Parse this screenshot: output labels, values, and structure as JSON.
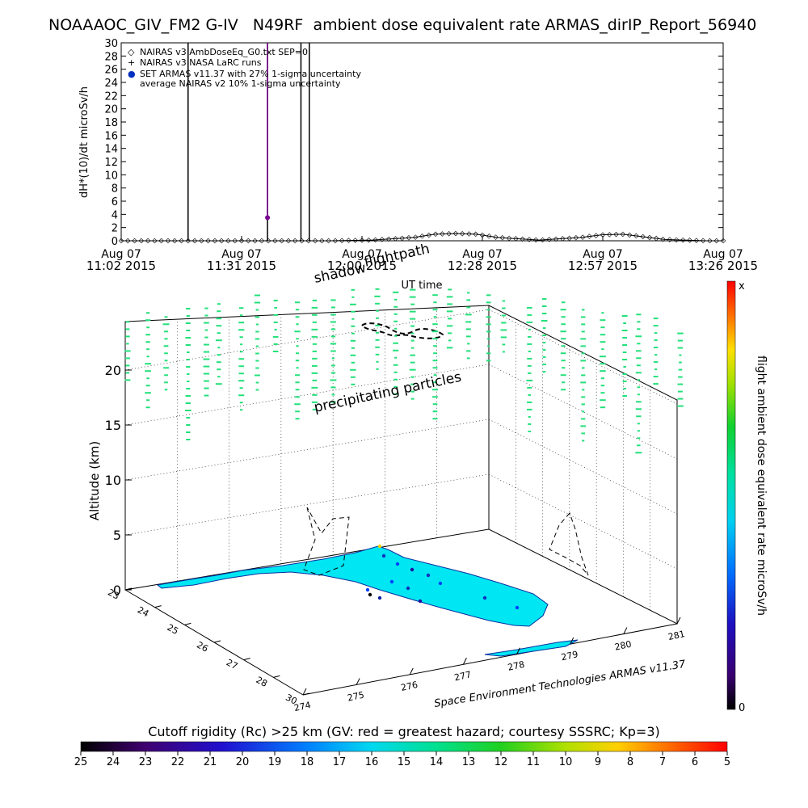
{
  "header": {
    "title": "NOAAAOC_GIV_FM2 G-IV   N49RF  ambient dose equivalent rate ARMAS_dirIP_Report_56940"
  },
  "chart_data": [
    {
      "type": "line",
      "ylabel": "dH*(10)/dt microSv/h",
      "xlabel": "UT time",
      "ylim": [
        0,
        30
      ],
      "y_ticks": [
        "0",
        "2",
        "4",
        "6",
        "8",
        "10",
        "12",
        "14",
        "16",
        "18",
        "20",
        "22",
        "24",
        "26",
        "28",
        "30"
      ],
      "x_tick_labels": [
        {
          "line1": "Aug 07",
          "line2": "11:02 2015"
        },
        {
          "line1": "Aug 07",
          "line2": "11:31 2015"
        },
        {
          "line1": "Aug 07",
          "line2": "12:00 2015"
        },
        {
          "line1": "Aug 07",
          "line2": "12:28 2015"
        },
        {
          "line1": "Aug 07",
          "line2": "12:57 2015"
        },
        {
          "line1": "Aug 07",
          "line2": "13:26 2015"
        }
      ],
      "legend": [
        {
          "symbol": "◇",
          "label": "NAIRAS v3 AmbDoseEq_G0.txt SEP=0"
        },
        {
          "symbol": "+",
          "label": "NAIRAS v3 NASA LaRC runs"
        },
        {
          "symbol": "●",
          "label": "SET ARMAS v11.37 with 27% 1-sigma uncertainty"
        },
        {
          "symbol": "",
          "label": "average NAIRAS v2 10% 1-sigma uncertainty"
        }
      ],
      "legend_position": "top-left",
      "series": [
        {
          "name": "NAIRAS v3 AmbDoseEq_G0.txt SEP=0",
          "x_minutes": [
            0,
            10,
            20,
            30,
            40,
            50,
            60,
            70,
            75,
            80,
            85,
            90,
            100,
            110,
            115,
            120,
            125,
            130,
            140
          ],
          "values": [
            0,
            0,
            0,
            0,
            0,
            0,
            0.1,
            0.5,
            1.0,
            1.1,
            1.0,
            0.5,
            0.1,
            0.5,
            0.9,
            1.0,
            0.6,
            0.2,
            0
          ]
        },
        {
          "name": "SET ARMAS v11.37 with 27% 1-sigma uncertainty",
          "x_minutes": [
            35
          ],
          "values": [
            3.5
          ]
        }
      ],
      "vertical_spikes_minutes": [
        16,
        35,
        43,
        45
      ]
    },
    {
      "type": "scatter",
      "ylabel": "Altitude (km)",
      "z_ticks": [
        "0",
        "5",
        "10",
        "15",
        "20"
      ],
      "x_ticks": [
        "274",
        "275",
        "276",
        "277",
        "278",
        "279",
        "280",
        "281"
      ],
      "y_ticks": [
        "23",
        "24",
        "25",
        "26",
        "27",
        "28",
        "30"
      ],
      "annotations": [
        "flightpath",
        "shadow",
        "precipitating particles"
      ],
      "footer_credit": "Space Environment Technologies ARMAS v11.37",
      "colorbar_label": "flight ambient dose equivalent rate microSv/h",
      "colorbar_top": "x",
      "colorbar_bottom": "0"
    }
  ],
  "cutoff_bar": {
    "label": "Cutoff rigidity (Rc) >25 km (GV: red = greatest hazard; courtesy SSSRC; Kp=3)",
    "ticks": [
      "25",
      "24",
      "23",
      "22",
      "21",
      "20",
      "19",
      "18",
      "17",
      "16",
      "15",
      "14",
      "13",
      "12",
      "11",
      "10",
      "9",
      "8",
      "7",
      "6",
      "5"
    ]
  },
  "colors": {
    "particles": "#22e07a",
    "land": "#00e6f2",
    "spike": "#000000",
    "armas_point": "#7a0090"
  }
}
